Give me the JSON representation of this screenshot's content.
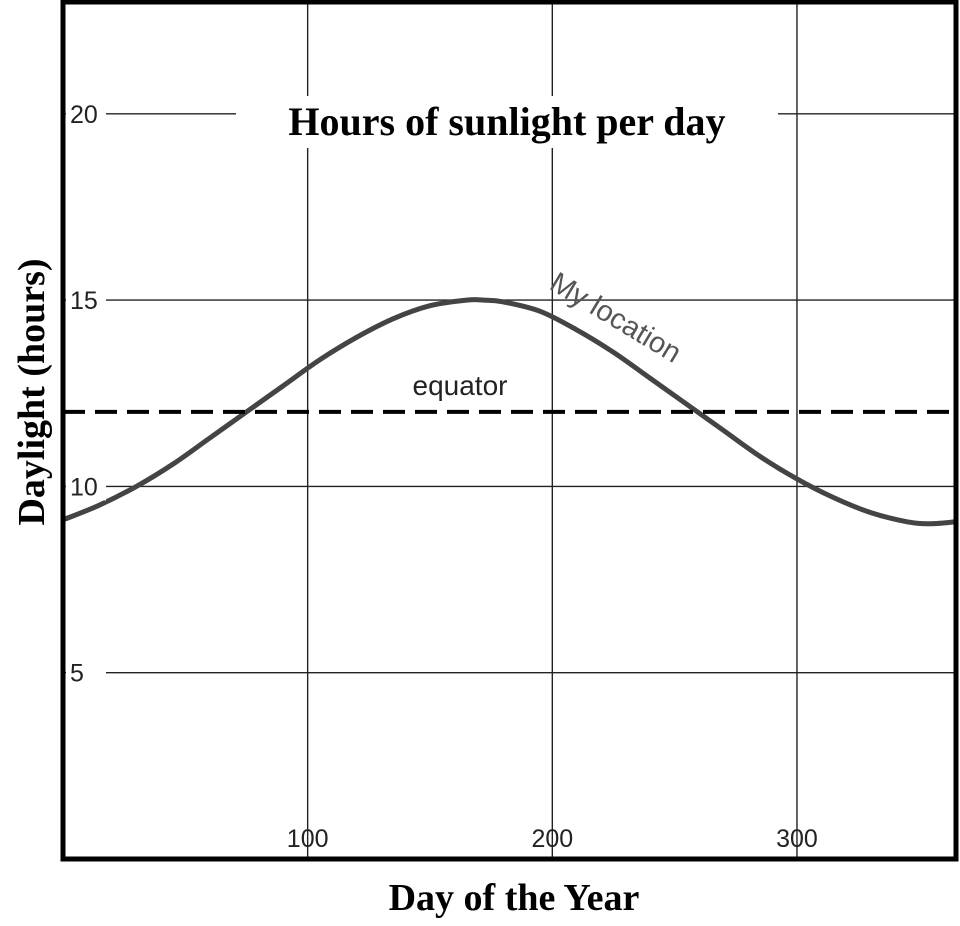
{
  "chart_data": {
    "type": "line",
    "title": "Hours of sunlight per day",
    "xlabel": "Day of the Year",
    "ylabel": "Daylight (hours)",
    "xlim": [
      0,
      365
    ],
    "ylim": [
      0,
      23
    ],
    "x_ticks": [
      100,
      200,
      300
    ],
    "y_ticks": [
      5,
      10,
      15,
      20
    ],
    "grid": true,
    "series": [
      {
        "name": "My location",
        "style": "solid",
        "color": "#444444",
        "x": [
          0,
          15,
          30,
          45,
          60,
          75,
          90,
          105,
          120,
          135,
          150,
          165,
          172,
          180,
          195,
          210,
          225,
          240,
          255,
          270,
          285,
          300,
          315,
          330,
          345,
          355,
          365
        ],
        "y": [
          9.1,
          9.5,
          10.0,
          10.6,
          11.3,
          12.0,
          12.7,
          13.4,
          14.0,
          14.5,
          14.85,
          15.0,
          15.0,
          14.95,
          14.7,
          14.2,
          13.6,
          12.9,
          12.2,
          11.5,
          10.8,
          10.2,
          9.7,
          9.3,
          9.05,
          9.0,
          9.05
        ]
      },
      {
        "name": "equator",
        "style": "dashed",
        "color": "#000000",
        "x": [
          0,
          365
        ],
        "y": [
          12.0,
          12.0
        ]
      }
    ],
    "annotations": [
      {
        "text": "My location",
        "series": "My location"
      },
      {
        "text": "equator",
        "series": "equator"
      }
    ]
  }
}
